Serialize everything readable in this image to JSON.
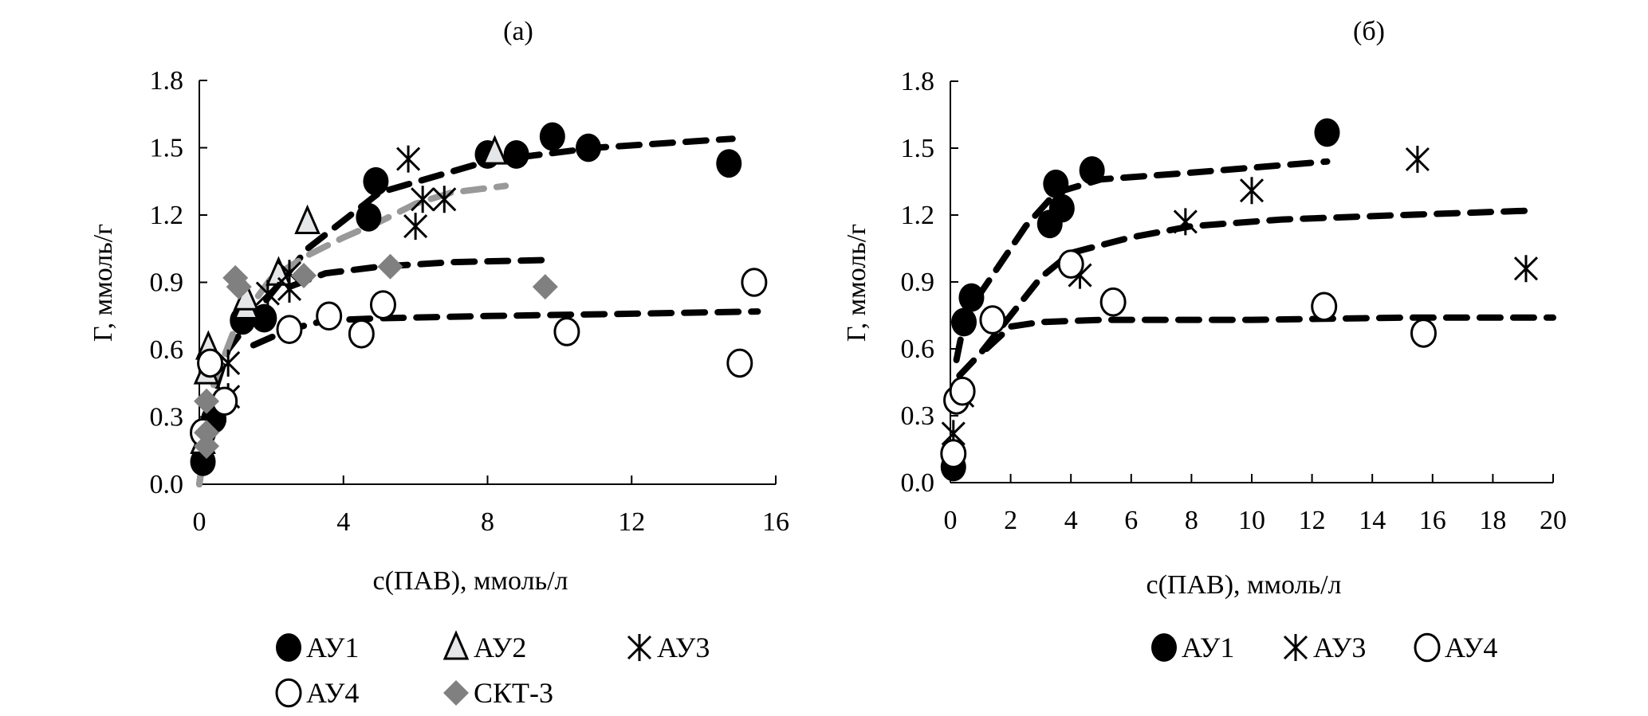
{
  "chart_data": [
    {
      "type": "scatter",
      "title": "(а)",
      "xlabel": "с(ПАВ), ммоль/л",
      "ylabel": "Г, ммоль/г",
      "xlim": [
        0,
        16
      ],
      "ylim": [
        0,
        1.8
      ],
      "xticks": [
        "0",
        "4",
        "8",
        "12",
        "16"
      ],
      "yticks": [
        "0.0",
        "0.3",
        "0.6",
        "0.9",
        "1.2",
        "1.5",
        "1.8"
      ],
      "grid": false,
      "legend_position": "bottom",
      "series": [
        {
          "name": "АУ1",
          "marker": "filled-circle",
          "color": "#000000",
          "points": [
            [
              0.1,
              0.1
            ],
            [
              0.4,
              0.29
            ],
            [
              1.2,
              0.73
            ],
            [
              1.8,
              0.74
            ],
            [
              4.7,
              1.19
            ],
            [
              4.9,
              1.35
            ],
            [
              8.0,
              1.47
            ],
            [
              8.8,
              1.47
            ],
            [
              9.8,
              1.55
            ],
            [
              10.8,
              1.5
            ],
            [
              14.7,
              1.43
            ]
          ],
          "fit": {
            "color": "#000000",
            "points": [
              [
                0,
                0
              ],
              [
                0.3,
                0.35
              ],
              [
                0.8,
                0.6
              ],
              [
                2,
                0.85
              ],
              [
                3,
                1.05
              ],
              [
                5,
                1.3
              ],
              [
                8,
                1.44
              ],
              [
                11,
                1.5
              ],
              [
                14.8,
                1.54
              ]
            ]
          }
        },
        {
          "name": "АУ2",
          "marker": "triangle",
          "color": "#e5e6e8",
          "points": [
            [
              0.1,
              0.19
            ],
            [
              0.2,
              0.5
            ],
            [
              0.25,
              0.61
            ],
            [
              1.3,
              0.79
            ],
            [
              1.3,
              0.83
            ],
            [
              2.2,
              0.94
            ],
            [
              3.0,
              1.17
            ],
            [
              8.2,
              1.48
            ]
          ],
          "fit": null
        },
        {
          "name": "АУ3",
          "marker": "asterisk",
          "color": "#000000",
          "points": [
            [
              0.8,
              0.39
            ],
            [
              0.8,
              0.54
            ],
            [
              1.9,
              0.85
            ],
            [
              2.5,
              0.87
            ],
            [
              2.5,
              0.94
            ],
            [
              5.8,
              1.45
            ],
            [
              6.0,
              1.15
            ],
            [
              6.2,
              1.27
            ],
            [
              6.8,
              1.27
            ]
          ],
          "fit": {
            "color": "#999999",
            "points": [
              [
                0,
                0
              ],
              [
                0.4,
                0.45
              ],
              [
                1,
                0.7
              ],
              [
                2,
                0.92
              ],
              [
                3,
                1.02
              ],
              [
                4,
                1.1
              ],
              [
                5,
                1.17
              ],
              [
                6,
                1.25
              ],
              [
                7,
                1.3
              ],
              [
                8.5,
                1.33
              ]
            ]
          }
        },
        {
          "name": "АУ4",
          "marker": "open-circle",
          "color": "#000000",
          "points": [
            [
              0.1,
              0.23
            ],
            [
              0.3,
              0.54
            ],
            [
              0.7,
              0.37
            ],
            [
              2.5,
              0.69
            ],
            [
              3.6,
              0.75
            ],
            [
              4.5,
              0.67
            ],
            [
              5.1,
              0.8
            ],
            [
              10.2,
              0.68
            ],
            [
              15.0,
              0.54
            ],
            [
              15.4,
              0.9
            ]
          ],
          "fit": {
            "color": "#000000",
            "points": [
              [
                1.5,
                0.62
              ],
              [
                2.5,
                0.69
              ],
              [
                3.5,
                0.73
              ],
              [
                5,
                0.74
              ],
              [
                8,
                0.75
              ],
              [
                12,
                0.76
              ],
              [
                15.5,
                0.77
              ]
            ]
          }
        },
        {
          "name": "СКТ-3",
          "marker": "diamond",
          "color": "#808080",
          "points": [
            [
              0.2,
              0.17
            ],
            [
              0.2,
              0.23
            ],
            [
              0.2,
              0.37
            ],
            [
              1.0,
              0.92
            ],
            [
              1.1,
              0.88
            ],
            [
              2.9,
              0.93
            ],
            [
              5.3,
              0.97
            ],
            [
              9.6,
              0.88
            ]
          ],
          "fit": {
            "color": "#000000",
            "points": [
              [
                2.5,
                0.88
              ],
              [
                3.5,
                0.94
              ],
              [
                5,
                0.97
              ],
              [
                7,
                0.99
              ],
              [
                9.8,
                1.0
              ]
            ]
          }
        }
      ]
    },
    {
      "type": "scatter",
      "title": "(б)",
      "xlabel": "с(ПАВ), ммоль/л",
      "ylabel": "Г, ммоль/г",
      "xlim": [
        0,
        20
      ],
      "ylim": [
        0,
        1.8
      ],
      "xticks": [
        "0",
        "2",
        "4",
        "6",
        "8",
        "10",
        "12",
        "14",
        "16",
        "18",
        "20"
      ],
      "yticks": [
        "0.0",
        "0.3",
        "0.6",
        "0.9",
        "1.2",
        "1.5",
        "1.8"
      ],
      "grid": false,
      "legend_position": "bottom",
      "series": [
        {
          "name": "АУ1",
          "marker": "filled-circle",
          "color": "#000000",
          "points": [
            [
              0.1,
              0.07
            ],
            [
              0.45,
              0.72
            ],
            [
              0.7,
              0.83
            ],
            [
              3.3,
              1.16
            ],
            [
              3.5,
              1.34
            ],
            [
              3.7,
              1.23
            ],
            [
              4.7,
              1.4
            ],
            [
              12.5,
              1.57
            ]
          ],
          "fit": {
            "color": "#000000",
            "points": [
              [
                0.2,
                0.55
              ],
              [
                0.5,
                0.75
              ],
              [
                1.5,
                0.95
              ],
              [
                2.5,
                1.15
              ],
              [
                3.5,
                1.3
              ],
              [
                5,
                1.36
              ],
              [
                8,
                1.39
              ],
              [
                12.5,
                1.44
              ]
            ]
          }
        },
        {
          "name": "АУ3",
          "marker": "asterisk",
          "color": "#000000",
          "points": [
            [
              0.1,
              0.22
            ],
            [
              0.4,
              0.39
            ],
            [
              4.3,
              0.93
            ],
            [
              7.8,
              1.17
            ],
            [
              10.0,
              1.31
            ],
            [
              15.5,
              1.45
            ],
            [
              19.1,
              0.96
            ]
          ],
          "fit": {
            "color": "#000000",
            "points": [
              [
                0.3,
                0.48
              ],
              [
                1,
                0.58
              ],
              [
                2,
                0.75
              ],
              [
                3,
                0.92
              ],
              [
                4,
                1.03
              ],
              [
                6,
                1.1
              ],
              [
                8,
                1.15
              ],
              [
                11,
                1.18
              ],
              [
                15,
                1.2
              ],
              [
                19.3,
                1.22
              ]
            ]
          }
        },
        {
          "name": "АУ4",
          "marker": "open-circle",
          "color": "#000000",
          "points": [
            [
              0.1,
              0.13
            ],
            [
              0.2,
              0.37
            ],
            [
              0.4,
              0.41
            ],
            [
              1.4,
              0.73
            ],
            [
              4.0,
              0.98
            ],
            [
              5.4,
              0.81
            ],
            [
              12.4,
              0.79
            ],
            [
              15.7,
              0.67
            ]
          ],
          "fit": {
            "color": "#000000",
            "points": [
              [
                1.2,
                0.6
              ],
              [
                2,
                0.7
              ],
              [
                3,
                0.72
              ],
              [
                5,
                0.73
              ],
              [
                10,
                0.73
              ],
              [
                15,
                0.74
              ],
              [
                20,
                0.74
              ]
            ]
          }
        }
      ]
    }
  ]
}
